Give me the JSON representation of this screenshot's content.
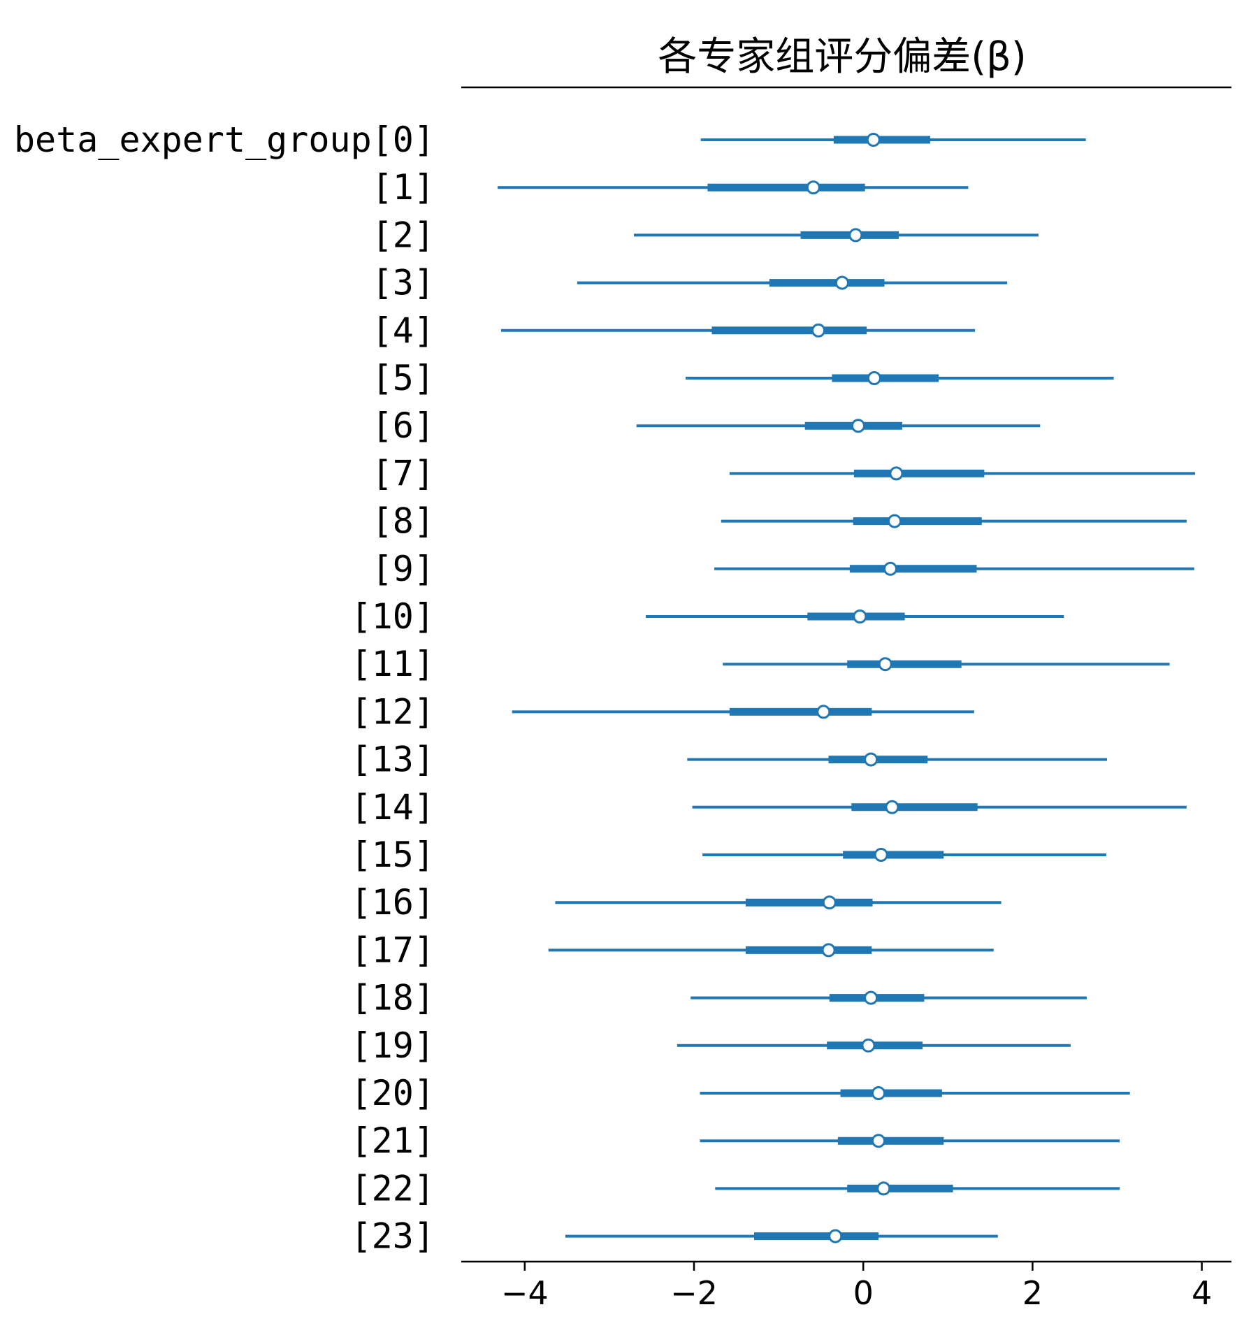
{
  "colors": {
    "series": "#1f77b4",
    "marker_fill": "#ffffff",
    "axis": "#000000"
  },
  "chart_data": {
    "type": "forest",
    "title": "各专家组评分偏差(β)",
    "variable": "beta_expert_group",
    "xlim": [
      -4.75,
      4.35
    ],
    "xticks": [
      -4,
      -2,
      0,
      2,
      4
    ],
    "xtick_labels": [
      "−4",
      "−2",
      "0",
      "2",
      "4"
    ],
    "grid": false,
    "rows": [
      {
        "label": "beta_expert_group[0]",
        "hdi_low": -1.92,
        "hdi_high": 2.63,
        "iqr_low": -0.35,
        "iqr_high": 0.79,
        "mean": 0.12
      },
      {
        "label": "[1]",
        "hdi_low": -4.32,
        "hdi_high": 1.24,
        "iqr_low": -1.84,
        "iqr_high": 0.02,
        "mean": -0.59
      },
      {
        "label": "[2]",
        "hdi_low": -2.71,
        "hdi_high": 2.07,
        "iqr_low": -0.74,
        "iqr_high": 0.42,
        "mean": -0.09
      },
      {
        "label": "[3]",
        "hdi_low": -3.38,
        "hdi_high": 1.7,
        "iqr_low": -1.11,
        "iqr_high": 0.25,
        "mean": -0.25
      },
      {
        "label": "[4]",
        "hdi_low": -4.28,
        "hdi_high": 1.32,
        "iqr_low": -1.79,
        "iqr_high": 0.04,
        "mean": -0.53
      },
      {
        "label": "[5]",
        "hdi_low": -2.1,
        "hdi_high": 2.96,
        "iqr_low": -0.37,
        "iqr_high": 0.89,
        "mean": 0.13
      },
      {
        "label": "[6]",
        "hdi_low": -2.68,
        "hdi_high": 2.09,
        "iqr_low": -0.69,
        "iqr_high": 0.46,
        "mean": -0.06
      },
      {
        "label": "[7]",
        "hdi_low": -1.58,
        "hdi_high": 3.92,
        "iqr_low": -0.11,
        "iqr_high": 1.43,
        "mean": 0.39
      },
      {
        "label": "[8]",
        "hdi_low": -1.68,
        "hdi_high": 3.82,
        "iqr_low": -0.12,
        "iqr_high": 1.4,
        "mean": 0.37
      },
      {
        "label": "[9]",
        "hdi_low": -1.76,
        "hdi_high": 3.91,
        "iqr_low": -0.16,
        "iqr_high": 1.34,
        "mean": 0.32
      },
      {
        "label": "[10]",
        "hdi_low": -2.57,
        "hdi_high": 2.37,
        "iqr_low": -0.66,
        "iqr_high": 0.49,
        "mean": -0.04
      },
      {
        "label": "[11]",
        "hdi_low": -1.66,
        "hdi_high": 3.62,
        "iqr_low": -0.19,
        "iqr_high": 1.16,
        "mean": 0.26
      },
      {
        "label": "[12]",
        "hdi_low": -4.15,
        "hdi_high": 1.31,
        "iqr_low": -1.58,
        "iqr_high": 0.1,
        "mean": -0.47
      },
      {
        "label": "[13]",
        "hdi_low": -2.08,
        "hdi_high": 2.88,
        "iqr_low": -0.41,
        "iqr_high": 0.76,
        "mean": 0.09
      },
      {
        "label": "[14]",
        "hdi_low": -2.02,
        "hdi_high": 3.82,
        "iqr_low": -0.14,
        "iqr_high": 1.35,
        "mean": 0.34
      },
      {
        "label": "[15]",
        "hdi_low": -1.9,
        "hdi_high": 2.87,
        "iqr_low": -0.24,
        "iqr_high": 0.95,
        "mean": 0.21
      },
      {
        "label": "[16]",
        "hdi_low": -3.64,
        "hdi_high": 1.63,
        "iqr_low": -1.39,
        "iqr_high": 0.11,
        "mean": -0.4
      },
      {
        "label": "[17]",
        "hdi_low": -3.72,
        "hdi_high": 1.54,
        "iqr_low": -1.39,
        "iqr_high": 0.1,
        "mean": -0.41
      },
      {
        "label": "[18]",
        "hdi_low": -2.04,
        "hdi_high": 2.64,
        "iqr_low": -0.4,
        "iqr_high": 0.72,
        "mean": 0.09
      },
      {
        "label": "[19]",
        "hdi_low": -2.2,
        "hdi_high": 2.45,
        "iqr_low": -0.43,
        "iqr_high": 0.7,
        "mean": 0.06
      },
      {
        "label": "[20]",
        "hdi_low": -1.93,
        "hdi_high": 3.15,
        "iqr_low": -0.27,
        "iqr_high": 0.93,
        "mean": 0.18
      },
      {
        "label": "[21]",
        "hdi_low": -1.93,
        "hdi_high": 3.03,
        "iqr_low": -0.3,
        "iqr_high": 0.95,
        "mean": 0.18
      },
      {
        "label": "[22]",
        "hdi_low": -1.75,
        "hdi_high": 3.03,
        "iqr_low": -0.19,
        "iqr_high": 1.06,
        "mean": 0.24
      },
      {
        "label": "[23]",
        "hdi_low": -3.52,
        "hdi_high": 1.59,
        "iqr_low": -1.29,
        "iqr_high": 0.18,
        "mean": -0.33
      }
    ]
  }
}
